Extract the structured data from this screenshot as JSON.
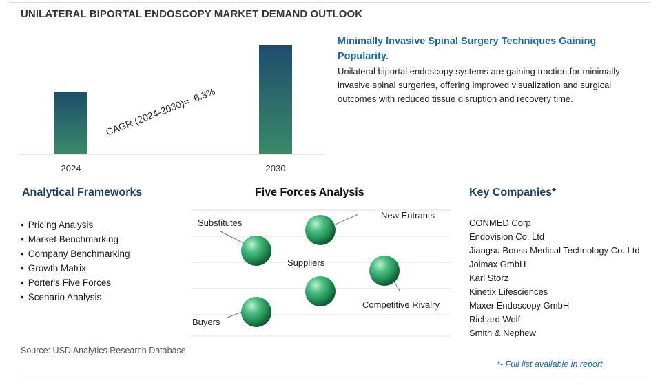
{
  "title": "UNILATERAL BIPORTAL ENDOSCOPY MARKET DEMAND OUTLOOK",
  "chart_data": {
    "type": "bar",
    "categories": [
      "2024",
      "2030"
    ],
    "annotation": "CAGR (2024-2030)=  6.3%",
    "colors": {
      "bar_top": "#1e4d6b",
      "bar_bottom": "#3a8a6a"
    }
  },
  "headline": "Minimally Invasive Spinal Surgery Techniques Gaining Popularity.",
  "description": "Unilateral biportal endoscopy systems are gaining traction for minimally invasive spinal surgeries, offering improved visualization and surgical outcomes with reduced tissue disruption and recovery time.",
  "frameworks": {
    "title": "Analytical Frameworks",
    "items": [
      "Pricing Analysis",
      "Market Benchmarking",
      "Company Benchmarking",
      "Growth Matrix",
      "Porter's Five Forces",
      "Scenario Analysis"
    ]
  },
  "five_forces": {
    "title": "Five Forces Analysis",
    "labels": [
      "Substitutes",
      "New Entrants",
      "Suppliers",
      "Competitive Rivalry",
      "Buyers"
    ]
  },
  "companies": {
    "title": "Key Companies*",
    "items": [
      "CONMED Corp",
      "Endovision Co. Ltd",
      "Jiangsu Bonss Medical Technology Co. Ltd",
      "Joimax GmbH",
      "Karl Storz",
      "Kinetix Lifesciences",
      "Maxer Endoscopy GmbH",
      "Richard Wolf",
      "Smith & Nephew"
    ],
    "footnote": "*- Full list available in report"
  },
  "source": "Source: USD Analytics Research Database"
}
